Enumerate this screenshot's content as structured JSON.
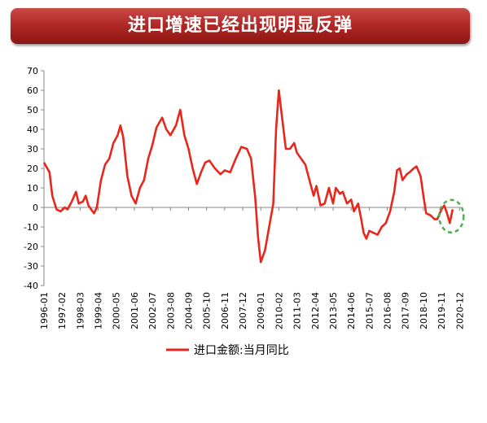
{
  "header": {
    "title": "进口增速已经出现明显反弹"
  },
  "chart_data": {
    "type": "line",
    "title": "进口增速已经出现明显反弹",
    "ylim": [
      -40,
      70
    ],
    "ytick_values": [
      70,
      60,
      50,
      40,
      30,
      20,
      10,
      0,
      -10,
      -20,
      -30,
      -40
    ],
    "ytick_labels": [
      "70",
      "60",
      "50",
      "40",
      "30",
      "20",
      "10",
      "0",
      "-10",
      "-20",
      "-30",
      "-40"
    ],
    "xtick_labels": [
      "1996-01",
      "1997-02",
      "1998-03",
      "1999-04",
      "2000-05",
      "2001-06",
      "2002-07",
      "2003-08",
      "2004-09",
      "2005-10",
      "2006-11",
      "2007-12",
      "2009-01",
      "2010-02",
      "2011-03",
      "2012-04",
      "2013-05",
      "2014-06",
      "2015-07",
      "2016-08",
      "2017-09",
      "2018-10",
      "2019-11",
      "2020-12"
    ],
    "grid": false,
    "legend_position": "bottom",
    "series": [
      {
        "name": "进口金额:当月同比",
        "color": "#e8271c",
        "points": [
          [
            "1996-01",
            23
          ],
          [
            "1996-05",
            18
          ],
          [
            "1996-07",
            6
          ],
          [
            "1996-10",
            -1
          ],
          [
            "1997-01",
            -2
          ],
          [
            "1997-04",
            0
          ],
          [
            "1997-06",
            -1
          ],
          [
            "1997-09",
            3
          ],
          [
            "1997-12",
            8
          ],
          [
            "1998-02",
            2
          ],
          [
            "1998-05",
            3
          ],
          [
            "1998-07",
            6
          ],
          [
            "1998-09",
            1
          ],
          [
            "1999-01",
            -3
          ],
          [
            "1999-03",
            0
          ],
          [
            "1999-06",
            14
          ],
          [
            "1999-09",
            22
          ],
          [
            "1999-12",
            25
          ],
          [
            "2000-03",
            33
          ],
          [
            "2000-06",
            37
          ],
          [
            "2000-08",
            42
          ],
          [
            "2000-10",
            36
          ],
          [
            "2001-01",
            16
          ],
          [
            "2001-04",
            6
          ],
          [
            "2001-07",
            2
          ],
          [
            "2001-10",
            10
          ],
          [
            "2002-01",
            14
          ],
          [
            "2002-04",
            25
          ],
          [
            "2002-07",
            32
          ],
          [
            "2002-10",
            41
          ],
          [
            "2003-02",
            46
          ],
          [
            "2003-05",
            40
          ],
          [
            "2003-08",
            37
          ],
          [
            "2003-12",
            42
          ],
          [
            "2004-03",
            50
          ],
          [
            "2004-06",
            37
          ],
          [
            "2004-09",
            30
          ],
          [
            "2004-12",
            20
          ],
          [
            "2005-03",
            12
          ],
          [
            "2005-06",
            18
          ],
          [
            "2005-09",
            23
          ],
          [
            "2005-12",
            24
          ],
          [
            "2006-04",
            20
          ],
          [
            "2006-08",
            17
          ],
          [
            "2006-11",
            19
          ],
          [
            "2007-03",
            18
          ],
          [
            "2007-07",
            25
          ],
          [
            "2007-11",
            31
          ],
          [
            "2008-03",
            30
          ],
          [
            "2008-06",
            25
          ],
          [
            "2008-09",
            5
          ],
          [
            "2008-11",
            -15
          ],
          [
            "2009-01",
            -28
          ],
          [
            "2009-04",
            -22
          ],
          [
            "2009-07",
            -10
          ],
          [
            "2009-10",
            2
          ],
          [
            "2009-12",
            40
          ],
          [
            "2010-02",
            60
          ],
          [
            "2010-04",
            48
          ],
          [
            "2010-07",
            30
          ],
          [
            "2010-10",
            30
          ],
          [
            "2011-01",
            33
          ],
          [
            "2011-03",
            28
          ],
          [
            "2011-06",
            25
          ],
          [
            "2011-09",
            22
          ],
          [
            "2011-12",
            14
          ],
          [
            "2012-03",
            6
          ],
          [
            "2012-05",
            11
          ],
          [
            "2012-08",
            1
          ],
          [
            "2012-11",
            2
          ],
          [
            "2013-02",
            10
          ],
          [
            "2013-05",
            2
          ],
          [
            "2013-07",
            10
          ],
          [
            "2013-10",
            7
          ],
          [
            "2013-12",
            8
          ],
          [
            "2014-03",
            2
          ],
          [
            "2014-06",
            4
          ],
          [
            "2014-08",
            -2
          ],
          [
            "2014-11",
            2
          ],
          [
            "2015-01",
            -5
          ],
          [
            "2015-03",
            -13
          ],
          [
            "2015-05",
            -16
          ],
          [
            "2015-07",
            -12
          ],
          [
            "2015-10",
            -13
          ],
          [
            "2016-01",
            -14
          ],
          [
            "2016-04",
            -10
          ],
          [
            "2016-07",
            -8
          ],
          [
            "2016-10",
            -2
          ],
          [
            "2017-01",
            8
          ],
          [
            "2017-03",
            19
          ],
          [
            "2017-05",
            20
          ],
          [
            "2017-07",
            14
          ],
          [
            "2017-10",
            17
          ],
          [
            "2017-12",
            18
          ],
          [
            "2018-03",
            20
          ],
          [
            "2018-05",
            21
          ],
          [
            "2018-08",
            16
          ],
          [
            "2018-10",
            6
          ],
          [
            "2018-12",
            -3
          ],
          [
            "2019-03",
            -4
          ],
          [
            "2019-06",
            -6
          ],
          [
            "2019-08",
            -6
          ],
          [
            "2019-11",
            -1
          ],
          [
            "2020-01",
            1
          ],
          [
            "2020-03",
            -3
          ],
          [
            "2020-05",
            -8
          ],
          [
            "2020-07",
            -1
          ]
        ]
      }
    ]
  }
}
